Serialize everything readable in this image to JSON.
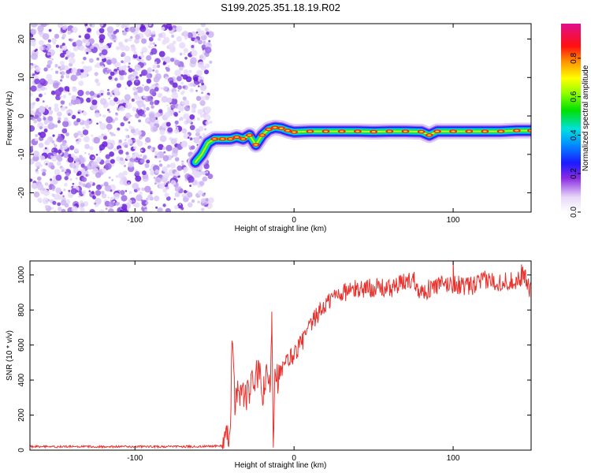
{
  "figure_title": "S199.2025.351.18.19.R02",
  "chart_data": [
    {
      "type": "heatmap",
      "name": "spectrogram",
      "xlabel": "Height of straight line (km)",
      "ylabel": "Frequency (Hz)",
      "xlim": [
        -166,
        149
      ],
      "ylim": [
        -25,
        24
      ],
      "xticks": [
        -100,
        0,
        100
      ],
      "yticks": [
        -20,
        -10,
        0,
        10,
        20
      ],
      "noise_region_x": [
        -166,
        -55
      ],
      "ridge": {
        "x": [
          -62,
          -58,
          -54,
          -50,
          -45,
          -40,
          -36,
          -32,
          -28,
          -24,
          -20,
          -16,
          -12,
          -8,
          -4,
          0,
          10,
          20,
          30,
          40,
          50,
          60,
          70,
          80,
          85,
          90,
          100,
          110,
          120,
          130,
          140,
          149
        ],
        "y": [
          -12,
          -10,
          -7,
          -6,
          -6,
          -6,
          -5.5,
          -6,
          -5,
          -7.5,
          -5,
          -3.5,
          -3,
          -3.2,
          -3.8,
          -4.2,
          -4,
          -4,
          -4,
          -4,
          -4.1,
          -4,
          -4,
          -4.1,
          -5,
          -4,
          -4,
          -4,
          -4,
          -4,
          -3.8,
          -3.8
        ]
      },
      "colorbar": {
        "label": "Normalized spectral amplitude",
        "ticks": [
          "0.0",
          "0.2",
          "0.4",
          "0.6",
          "0.8"
        ],
        "range": [
          0,
          0.98
        ]
      }
    },
    {
      "type": "line",
      "name": "snr",
      "xlabel": "Height of straight line (km)",
      "ylabel": "SNR (10 * v/v)",
      "xlim": [
        -166,
        149
      ],
      "ylim": [
        0,
        1080
      ],
      "xticks": [
        -100,
        0,
        100
      ],
      "yticks": [
        0,
        200,
        400,
        600,
        800,
        1000
      ],
      "color": "#e8322e",
      "series": [
        {
          "name": "SNR",
          "x": [
            -166,
            -120,
            -80,
            -60,
            -45,
            -42,
            -40,
            -39,
            -37,
            -35,
            -30,
            -25,
            -22,
            -20,
            -17,
            -15,
            -14,
            -13,
            -12,
            -10,
            -5,
            0,
            5,
            10,
            15,
            20,
            25,
            30,
            40,
            50,
            60,
            70,
            75,
            80,
            90,
            100,
            110,
            120,
            130,
            140,
            145,
            149
          ],
          "y": [
            20,
            20,
            20,
            20,
            25,
            60,
            150,
            620,
            250,
            350,
            300,
            400,
            450,
            300,
            420,
            350,
            790,
            40,
            500,
            400,
            500,
            550,
            620,
            700,
            780,
            830,
            880,
            900,
            920,
            930,
            920,
            960,
            980,
            900,
            940,
            950,
            930,
            970,
            960,
            970,
            1000,
            900
          ]
        }
      ]
    }
  ]
}
